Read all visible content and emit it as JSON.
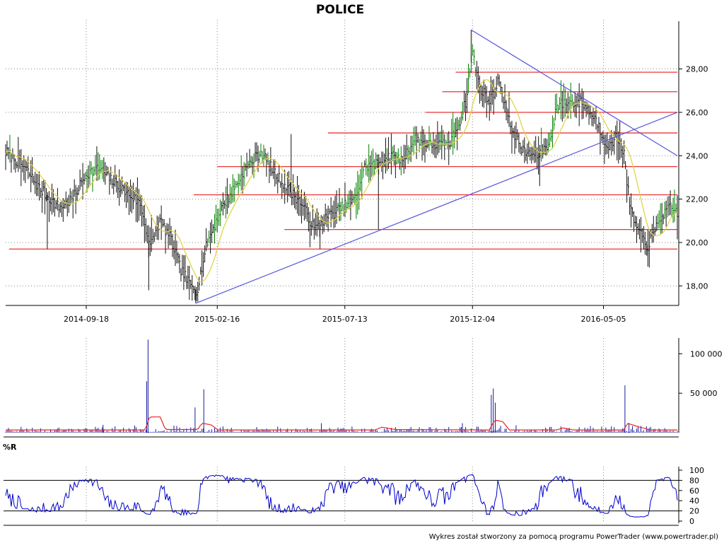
{
  "chart_data": {
    "title": "POLICE",
    "footer": "Wykres został stworzony za pomocą programu PowerTrader (www.powertrader.pl)",
    "colors": {
      "price": "#111111",
      "ma": "#e0d040",
      "rising": "#008000",
      "support": "#ee3333",
      "trend": "#5555dd",
      "volume": "#1a1aa0",
      "volume_ma": "#ee2222",
      "wr": "#0000cc"
    },
    "panels": [
      {
        "id": "price",
        "type": "line",
        "ylim": [
          17.1,
          30.2
        ],
        "yticks": [
          18,
          20,
          22,
          24,
          26,
          28
        ],
        "ytick_labels": [
          "18,00",
          "20,00",
          "22,00",
          "24,00",
          "26,00",
          "28,00"
        ],
        "xticks": [
          "2014-09-18",
          "2015-02-16",
          "2015-07-13",
          "2015-12-04",
          "2016-05-05"
        ],
        "x_range": [
          0,
          100
        ],
        "xtick_pos": [
          12,
          31.5,
          50.5,
          69.5,
          89
        ],
        "close_keypoints": [
          [
            0,
            24.2
          ],
          [
            3,
            23.4
          ],
          [
            5,
            22.5
          ],
          [
            8,
            21.6
          ],
          [
            10,
            22.0
          ],
          [
            12,
            23.2
          ],
          [
            14,
            23.4
          ],
          [
            16,
            22.8
          ],
          [
            18,
            22.3
          ],
          [
            20,
            21.8
          ],
          [
            21.5,
            19.8
          ],
          [
            23,
            21.0
          ],
          [
            24.5,
            20.2
          ],
          [
            26,
            18.8
          ],
          [
            27.5,
            18.0
          ],
          [
            28.5,
            17.8
          ],
          [
            30,
            20.0
          ],
          [
            32,
            21.5
          ],
          [
            34,
            22.5
          ],
          [
            36,
            23.5
          ],
          [
            38,
            24.2
          ],
          [
            40,
            23.2
          ],
          [
            42,
            22.5
          ],
          [
            44,
            21.8
          ],
          [
            46,
            20.6
          ],
          [
            48,
            21.2
          ],
          [
            50,
            21.6
          ],
          [
            52,
            22.0
          ],
          [
            53.5,
            23.5
          ],
          [
            55,
            23.6
          ],
          [
            57,
            24.0
          ],
          [
            59,
            23.8
          ],
          [
            61,
            24.8
          ],
          [
            63,
            24.5
          ],
          [
            66,
            24.5
          ],
          [
            67.5,
            25.5
          ],
          [
            68.5,
            26.5
          ],
          [
            69.5,
            28.8
          ],
          [
            70.5,
            27.2
          ],
          [
            72,
            26.5
          ],
          [
            73.5,
            27.5
          ],
          [
            75,
            25.5
          ],
          [
            77,
            24.2
          ],
          [
            79,
            24.0
          ],
          [
            81,
            24.6
          ],
          [
            82,
            26.3
          ],
          [
            84,
            26.5
          ],
          [
            86,
            26.4
          ],
          [
            88,
            25.6
          ],
          [
            89,
            24.8
          ],
          [
            90,
            24.4
          ],
          [
            91,
            24.9
          ],
          [
            92,
            24.2
          ],
          [
            93,
            21.5
          ],
          [
            94,
            20.6
          ],
          [
            95.5,
            19.8
          ],
          [
            96.5,
            20.4
          ],
          [
            97.5,
            21.2
          ],
          [
            99,
            21.6
          ],
          [
            100,
            21.4
          ]
        ],
        "horizontal_levels": [
          {
            "y": 27.85,
            "x_from": 67
          },
          {
            "y": 26.95,
            "x_from": 65
          },
          {
            "y": 26.0,
            "x_from": 62.5
          },
          {
            "y": 25.05,
            "x_from": 48
          },
          {
            "y": 23.5,
            "x_from": 31.5
          },
          {
            "y": 22.2,
            "x_from": 28
          },
          {
            "y": 20.6,
            "x_from": 41.5
          },
          {
            "y": 19.7,
            "x_from": 0.5
          }
        ],
        "trend_lines": [
          {
            "x1": 28.3,
            "y1": 17.2,
            "x2": 100,
            "y2": 26.0
          },
          {
            "x1": 69.3,
            "y1": 29.8,
            "x2": 100,
            "y2": 24.0
          }
        ]
      },
      {
        "id": "volume",
        "type": "bar",
        "ylim": [
          0,
          120000
        ],
        "yticks": [
          50000,
          100000
        ],
        "ytick_labels": [
          "50 000",
          "100 000"
        ],
        "spikes": [
          [
            21.2,
            118000
          ],
          [
            21.0,
            65000
          ],
          [
            29.5,
            55000
          ],
          [
            28.2,
            32000
          ],
          [
            47.0,
            12000
          ],
          [
            72.6,
            56000
          ],
          [
            72.3,
            48000
          ],
          [
            72.9,
            38000
          ],
          [
            92.2,
            60000
          ],
          [
            92.8,
            12000
          ],
          [
            14.5,
            10000
          ],
          [
            68.0,
            12000
          ]
        ],
        "ma_keypoints": [
          [
            0,
            3500
          ],
          [
            20.8,
            3500
          ],
          [
            21.4,
            20000
          ],
          [
            23.0,
            20000
          ],
          [
            23.8,
            4000
          ],
          [
            28.6,
            4000
          ],
          [
            29.2,
            12000
          ],
          [
            30.6,
            10000
          ],
          [
            31.6,
            3500
          ],
          [
            55,
            3500
          ],
          [
            56,
            7000
          ],
          [
            58,
            4000
          ],
          [
            72,
            3500
          ],
          [
            72.8,
            16000
          ],
          [
            74,
            14000
          ],
          [
            75,
            3500
          ],
          [
            82,
            3500
          ],
          [
            83,
            6000
          ],
          [
            84.5,
            3500
          ],
          [
            92,
            3500
          ],
          [
            92.6,
            12000
          ],
          [
            94,
            8000
          ],
          [
            96,
            3500
          ],
          [
            100,
            3500
          ]
        ]
      },
      {
        "id": "wr",
        "label": "%R",
        "type": "line",
        "ylim": [
          0,
          100
        ],
        "yticks": [
          0,
          20,
          40,
          60,
          80,
          100
        ],
        "ytick_labels": [
          "0",
          "20",
          "40",
          "60",
          "80",
          "100"
        ],
        "reference_lines": [
          20,
          80
        ]
      }
    ]
  }
}
